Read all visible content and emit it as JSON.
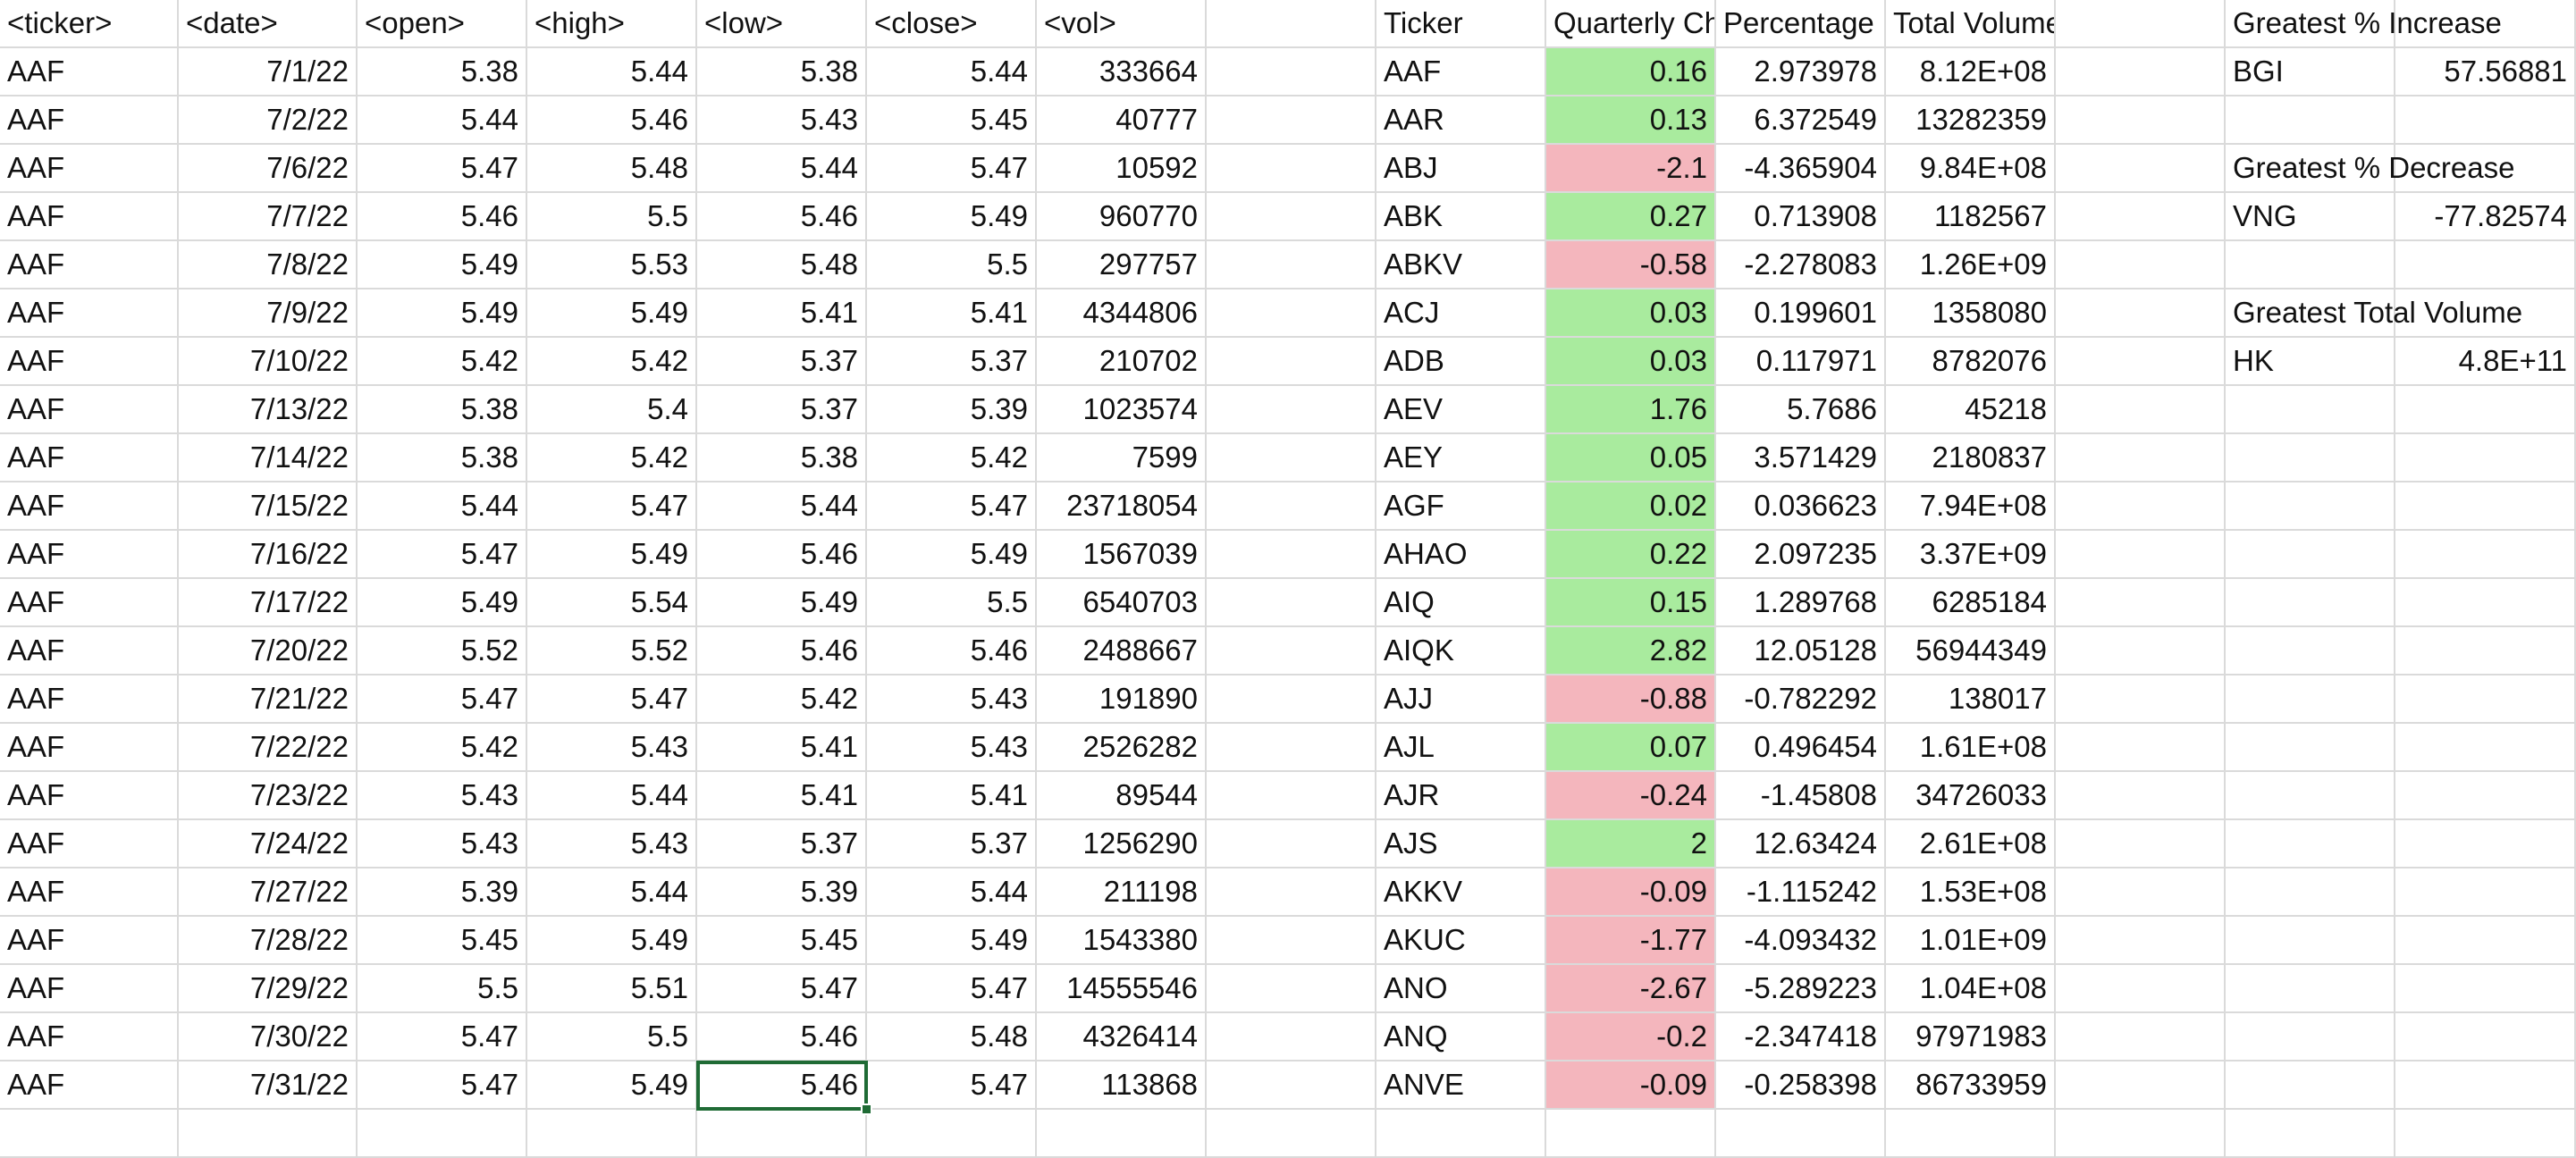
{
  "raw_table": {
    "headers": [
      "<ticker>",
      "<date>",
      "<open>",
      "<high>",
      "<low>",
      "<close>",
      "<vol>"
    ],
    "rows": [
      [
        "AAF",
        "7/1/22",
        "5.38",
        "5.44",
        "5.38",
        "5.44",
        "333664"
      ],
      [
        "AAF",
        "7/2/22",
        "5.44",
        "5.46",
        "5.43",
        "5.45",
        "40777"
      ],
      [
        "AAF",
        "7/6/22",
        "5.47",
        "5.48",
        "5.44",
        "5.47",
        "10592"
      ],
      [
        "AAF",
        "7/7/22",
        "5.46",
        "5.5",
        "5.46",
        "5.49",
        "960770"
      ],
      [
        "AAF",
        "7/8/22",
        "5.49",
        "5.53",
        "5.48",
        "5.5",
        "297757"
      ],
      [
        "AAF",
        "7/9/22",
        "5.49",
        "5.49",
        "5.41",
        "5.41",
        "4344806"
      ],
      [
        "AAF",
        "7/10/22",
        "5.42",
        "5.42",
        "5.37",
        "5.37",
        "210702"
      ],
      [
        "AAF",
        "7/13/22",
        "5.38",
        "5.4",
        "5.37",
        "5.39",
        "1023574"
      ],
      [
        "AAF",
        "7/14/22",
        "5.38",
        "5.42",
        "5.38",
        "5.42",
        "7599"
      ],
      [
        "AAF",
        "7/15/22",
        "5.44",
        "5.47",
        "5.44",
        "5.47",
        "23718054"
      ],
      [
        "AAF",
        "7/16/22",
        "5.47",
        "5.49",
        "5.46",
        "5.49",
        "1567039"
      ],
      [
        "AAF",
        "7/17/22",
        "5.49",
        "5.54",
        "5.49",
        "5.5",
        "6540703"
      ],
      [
        "AAF",
        "7/20/22",
        "5.52",
        "5.52",
        "5.46",
        "5.46",
        "2488667"
      ],
      [
        "AAF",
        "7/21/22",
        "5.47",
        "5.47",
        "5.42",
        "5.43",
        "191890"
      ],
      [
        "AAF",
        "7/22/22",
        "5.42",
        "5.43",
        "5.41",
        "5.43",
        "2526282"
      ],
      [
        "AAF",
        "7/23/22",
        "5.43",
        "5.44",
        "5.41",
        "5.41",
        "89544"
      ],
      [
        "AAF",
        "7/24/22",
        "5.43",
        "5.43",
        "5.37",
        "5.37",
        "1256290"
      ],
      [
        "AAF",
        "7/27/22",
        "5.39",
        "5.44",
        "5.39",
        "5.44",
        "211198"
      ],
      [
        "AAF",
        "7/28/22",
        "5.45",
        "5.49",
        "5.45",
        "5.49",
        "1543380"
      ],
      [
        "AAF",
        "7/29/22",
        "5.5",
        "5.51",
        "5.47",
        "5.47",
        "14555546"
      ],
      [
        "AAF",
        "7/30/22",
        "5.47",
        "5.5",
        "5.46",
        "5.48",
        "4326414"
      ],
      [
        "AAF",
        "7/31/22",
        "5.47",
        "5.49",
        "5.46",
        "5.47",
        "113868"
      ]
    ]
  },
  "summary_table": {
    "headers": [
      "Ticker",
      "Quarterly Change",
      "Percentage",
      "Total Volume"
    ],
    "rows": [
      [
        "AAF",
        "0.16",
        "2.973978",
        "8.12E+08"
      ],
      [
        "AAR",
        "0.13",
        "6.372549",
        "13282359"
      ],
      [
        "ABJ",
        "-2.1",
        "-4.365904",
        "9.84E+08"
      ],
      [
        "ABK",
        "0.27",
        "0.713908",
        "1182567"
      ],
      [
        "ABKV",
        "-0.58",
        "-2.278083",
        "1.26E+09"
      ],
      [
        "ACJ",
        "0.03",
        "0.199601",
        "1358080"
      ],
      [
        "ADB",
        "0.03",
        "0.117971",
        "8782076"
      ],
      [
        "AEV",
        "1.76",
        "5.7686",
        "45218"
      ],
      [
        "AEY",
        "0.05",
        "3.571429",
        "2180837"
      ],
      [
        "AGF",
        "0.02",
        "0.036623",
        "7.94E+08"
      ],
      [
        "AHAO",
        "0.22",
        "2.097235",
        "3.37E+09"
      ],
      [
        "AIQ",
        "0.15",
        "1.289768",
        "6285184"
      ],
      [
        "AIQK",
        "2.82",
        "12.05128",
        "56944349"
      ],
      [
        "AJJ",
        "-0.88",
        "-0.782292",
        "138017"
      ],
      [
        "AJL",
        "0.07",
        "0.496454",
        "1.61E+08"
      ],
      [
        "AJR",
        "-0.24",
        "-1.45808",
        "34726033"
      ],
      [
        "AJS",
        "2",
        "12.63424",
        "2.61E+08"
      ],
      [
        "AKKV",
        "-0.09",
        "-1.115242",
        "1.53E+08"
      ],
      [
        "AKUC",
        "-1.77",
        "-4.093432",
        "1.01E+09"
      ],
      [
        "ANO",
        "-2.67",
        "-5.289223",
        "1.04E+08"
      ],
      [
        "ANQ",
        "-0.2",
        "-2.347418",
        "97971983"
      ],
      [
        "ANVE",
        "-0.09",
        "-0.258398",
        "86733959"
      ]
    ]
  },
  "greatest": [
    {
      "label": "Greatest % Increase",
      "ticker": "BGI",
      "value": "57.56881"
    },
    {
      "label": "Greatest % Decrease",
      "ticker": "VNG",
      "value": "-77.82574"
    },
    {
      "label": "Greatest Total Volume",
      "ticker": "HK",
      "value": "4.8E+11"
    }
  ],
  "selected_cell": {
    "row": 21,
    "column": "<low>"
  },
  "colors": {
    "positive_fill": "#a9eb9e",
    "negative_fill": "#f4b6bd",
    "selection": "#1f6b35",
    "gridline": "#dadada"
  }
}
